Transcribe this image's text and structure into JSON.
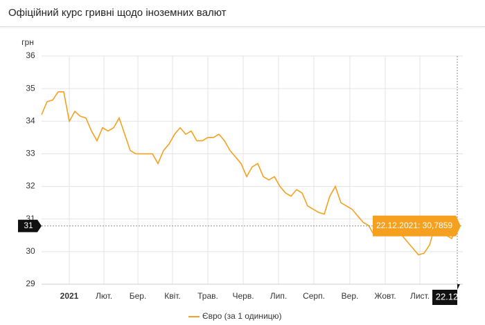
{
  "chart_data": {
    "type": "line",
    "title": "Офіційний курс гривні щодо іноземних валют",
    "y_label": "грн",
    "ylim": [
      29,
      36
    ],
    "yticks": [
      29,
      30,
      31,
      32,
      33,
      34,
      35,
      36
    ],
    "xlim": [
      0,
      76
    ],
    "xticks": [
      {
        "value": 5,
        "label": "2021"
      },
      {
        "value": 11.25,
        "label": "Лют."
      },
      {
        "value": 17.375,
        "label": "Бер."
      },
      {
        "value": 23.625,
        "label": "Квіт."
      },
      {
        "value": 30,
        "label": "Трав."
      },
      {
        "value": 36.375,
        "label": "Черв."
      },
      {
        "value": 42.75,
        "label": "Лип."
      },
      {
        "value": 49.125,
        "label": "Серп."
      },
      {
        "value": 55.625,
        "label": "Вер."
      },
      {
        "value": 62,
        "label": "Жовт."
      },
      {
        "value": 68.25,
        "label": "Лист."
      }
    ],
    "grid": true,
    "series": [
      {
        "name": "Євро (за 1 одиницю)",
        "color": "#f5a01e",
        "values": [
          34.2,
          34.6,
          34.65,
          34.9,
          34.9,
          34.0,
          34.3,
          34.15,
          34.1,
          33.7,
          33.4,
          33.8,
          33.7,
          33.8,
          34.1,
          33.6,
          33.1,
          33.0,
          33.0,
          33.0,
          33.0,
          32.7,
          33.1,
          33.3,
          33.6,
          33.8,
          33.6,
          33.7,
          33.4,
          33.4,
          33.5,
          33.5,
          33.6,
          33.4,
          33.1,
          32.9,
          32.7,
          32.3,
          32.6,
          32.7,
          32.3,
          32.2,
          32.3,
          32.0,
          31.8,
          31.7,
          31.9,
          31.8,
          31.4,
          31.3,
          31.2,
          31.15,
          31.7,
          32.0,
          31.5,
          31.4,
          31.3,
          31.1,
          30.9,
          30.8,
          30.5,
          30.5,
          30.6,
          30.7,
          30.6,
          30.5,
          30.3,
          30.1,
          29.9,
          29.95,
          30.2,
          30.8,
          30.6,
          30.5,
          30.4,
          30.7859
        ]
      }
    ],
    "crosshair": {
      "value": 30.7859,
      "x_label": "22.12",
      "y_label": "31",
      "tooltip": "22.12.2021: 30,7859"
    }
  }
}
